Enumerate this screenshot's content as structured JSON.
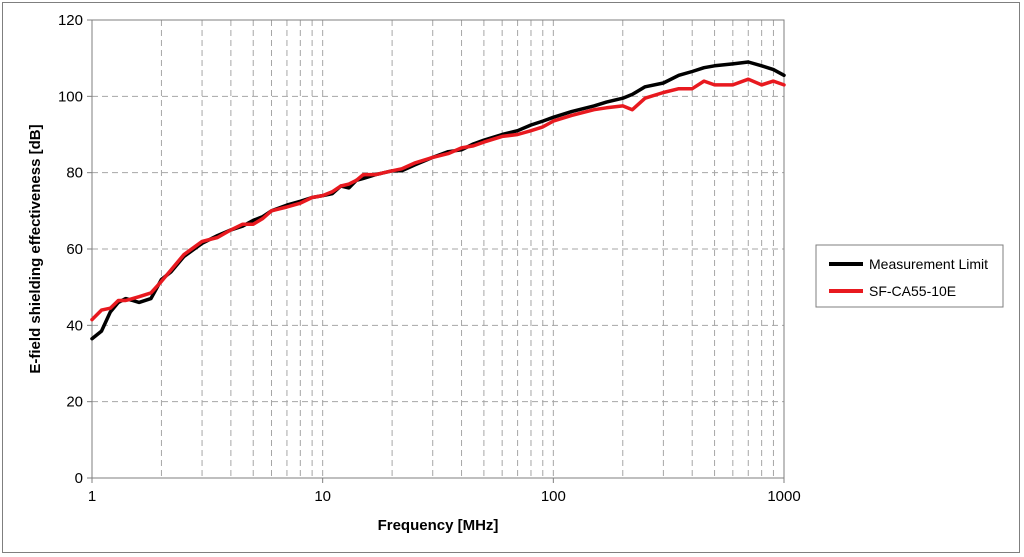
{
  "chart_data": {
    "type": "line",
    "title": "",
    "xlabel": "Frequency [MHz]",
    "ylabel": "E-field shielding effectiveness [dB]",
    "xscale": "log",
    "xlim": [
      1,
      1000
    ],
    "ylim": [
      0,
      120
    ],
    "xticks": [
      1,
      10,
      100,
      1000
    ],
    "xtick_labels": [
      "1",
      "10",
      "100",
      "1000"
    ],
    "yticks": [
      0,
      20,
      40,
      60,
      80,
      100,
      120
    ],
    "ytick_labels": [
      "0",
      "20",
      "40",
      "60",
      "80",
      "100",
      "120"
    ],
    "grid": "dashed",
    "legend_position": "right",
    "series": [
      {
        "name": "Measurement Limit",
        "color": "#000000",
        "x": [
          1,
          1.1,
          1.2,
          1.3,
          1.4,
          1.5,
          1.6,
          1.8,
          2,
          2.2,
          2.5,
          3,
          3.5,
          4,
          4.5,
          5,
          5.5,
          6,
          7,
          8,
          9,
          10,
          11,
          12,
          13,
          14,
          15,
          17,
          20,
          22,
          25,
          30,
          35,
          40,
          45,
          50,
          60,
          70,
          80,
          90,
          100,
          120,
          150,
          170,
          200,
          220,
          250,
          300,
          350,
          400,
          450,
          500,
          600,
          700,
          800,
          900,
          1000
        ],
        "y": [
          36.5,
          38.5,
          43.5,
          46,
          47,
          46.5,
          46,
          47,
          52,
          54,
          58,
          61.5,
          63.5,
          65,
          66,
          67.5,
          68.5,
          70,
          71.5,
          72.5,
          73.5,
          74,
          74.5,
          76.5,
          76,
          78,
          78.5,
          79.5,
          80.5,
          80.5,
          82,
          84,
          85.5,
          86,
          87.5,
          88.5,
          90,
          91,
          92.5,
          93.5,
          94.5,
          96,
          97.5,
          98.5,
          99.5,
          100.5,
          102.5,
          103.5,
          105.5,
          106.5,
          107.5,
          108,
          108.5,
          109,
          108,
          107,
          105.5
        ]
      },
      {
        "name": "SF-CA55-10E",
        "color": "#e8191f",
        "x": [
          1,
          1.1,
          1.2,
          1.3,
          1.4,
          1.5,
          1.6,
          1.8,
          2,
          2.2,
          2.5,
          3,
          3.5,
          4,
          4.5,
          5,
          5.5,
          6,
          7,
          8,
          9,
          10,
          11,
          12,
          13,
          14,
          15,
          17,
          20,
          22,
          25,
          30,
          35,
          40,
          45,
          50,
          60,
          70,
          80,
          90,
          100,
          120,
          150,
          170,
          200,
          220,
          250,
          300,
          350,
          400,
          450,
          500,
          600,
          700,
          800,
          900,
          1000
        ],
        "y": [
          41.5,
          44,
          44.5,
          46.5,
          46.5,
          47,
          47.5,
          48.5,
          51.5,
          54.5,
          58.5,
          62,
          63,
          65,
          66.5,
          66.5,
          68,
          70,
          71,
          72,
          73.5,
          74,
          75,
          76.5,
          77,
          78,
          79.5,
          79.5,
          80.5,
          81,
          82.5,
          84,
          85,
          86.5,
          87,
          88,
          89.5,
          90,
          91,
          92,
          93.5,
          95,
          96.5,
          97,
          97.5,
          96.5,
          99.5,
          101,
          102,
          102,
          104,
          103,
          103,
          104.5,
          103,
          104,
          103
        ]
      }
    ]
  }
}
